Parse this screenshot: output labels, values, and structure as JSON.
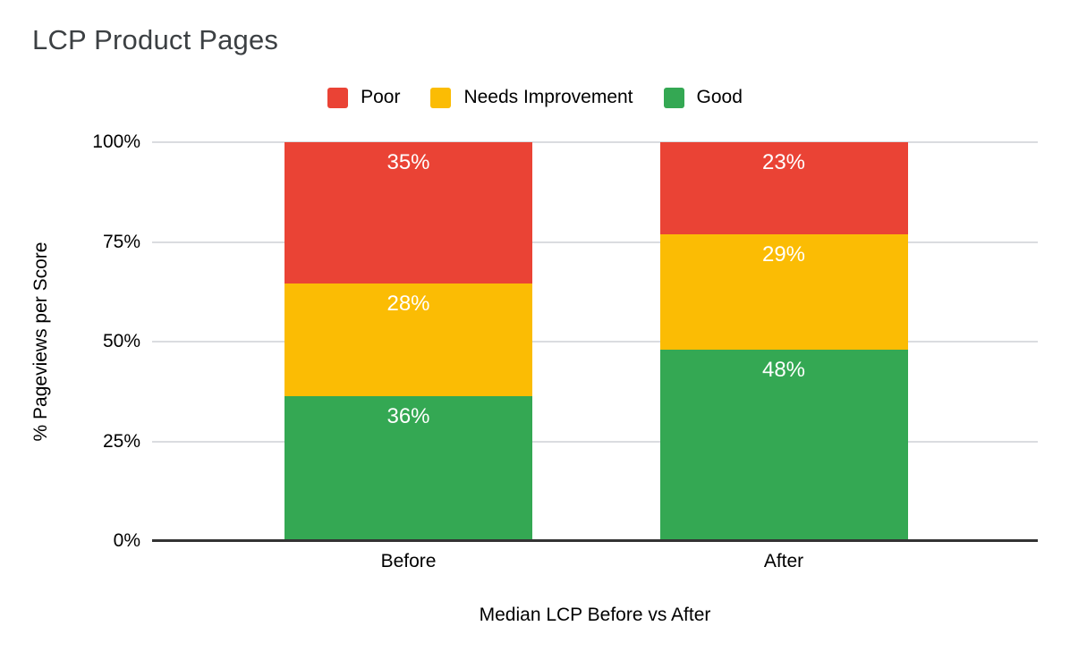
{
  "chart_data": {
    "type": "bar",
    "stacked": true,
    "stacked_as_percent": true,
    "title": "LCP Product Pages",
    "xlabel": "Median LCP Before vs After",
    "ylabel": "% Pageviews per Score",
    "categories": [
      "Before",
      "After"
    ],
    "series": [
      {
        "name": "Good",
        "color": "#34A853",
        "values": [
          36,
          48
        ]
      },
      {
        "name": "Needs Improvement",
        "color": "#FBBC04",
        "values": [
          28,
          29
        ]
      },
      {
        "name": "Poor",
        "color": "#EA4335",
        "values": [
          35,
          23
        ]
      }
    ],
    "data_label_suffix": "%",
    "y_ticks": [
      0,
      25,
      50,
      75,
      100
    ],
    "y_tick_suffix": "%",
    "ylim": [
      0,
      100
    ],
    "grid": true,
    "legend_position": "top",
    "legend_order": [
      "Poor",
      "Needs Improvement",
      "Good"
    ]
  },
  "styles": {
    "background": "#FFFFFF",
    "title_color": "#3C4043",
    "axis_text_color": "#000000",
    "data_label_color": "#FFFFFF",
    "gridline_color": "#DADCE0",
    "axis_line_color": "#333333"
  }
}
